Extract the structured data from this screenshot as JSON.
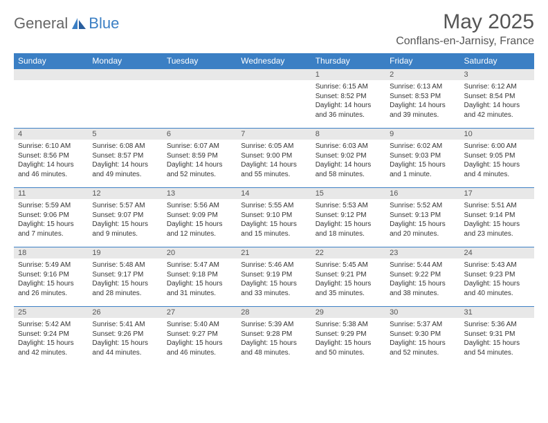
{
  "brand": {
    "part1": "General",
    "part2": "Blue"
  },
  "title": "May 2025",
  "location": "Conflans-en-Jarnisy, France",
  "colors": {
    "header_bg": "#3b7fc4",
    "header_text": "#ffffff",
    "daynum_bg": "#e8e8e8",
    "text": "#333333",
    "rule": "#3b7fc4"
  },
  "weekdays": [
    "Sunday",
    "Monday",
    "Tuesday",
    "Wednesday",
    "Thursday",
    "Friday",
    "Saturday"
  ],
  "weeks": [
    [
      null,
      null,
      null,
      null,
      {
        "n": "1",
        "sunrise": "6:15 AM",
        "sunset": "8:52 PM",
        "daylight": "14 hours and 36 minutes."
      },
      {
        "n": "2",
        "sunrise": "6:13 AM",
        "sunset": "8:53 PM",
        "daylight": "14 hours and 39 minutes."
      },
      {
        "n": "3",
        "sunrise": "6:12 AM",
        "sunset": "8:54 PM",
        "daylight": "14 hours and 42 minutes."
      }
    ],
    [
      {
        "n": "4",
        "sunrise": "6:10 AM",
        "sunset": "8:56 PM",
        "daylight": "14 hours and 46 minutes."
      },
      {
        "n": "5",
        "sunrise": "6:08 AM",
        "sunset": "8:57 PM",
        "daylight": "14 hours and 49 minutes."
      },
      {
        "n": "6",
        "sunrise": "6:07 AM",
        "sunset": "8:59 PM",
        "daylight": "14 hours and 52 minutes."
      },
      {
        "n": "7",
        "sunrise": "6:05 AM",
        "sunset": "9:00 PM",
        "daylight": "14 hours and 55 minutes."
      },
      {
        "n": "8",
        "sunrise": "6:03 AM",
        "sunset": "9:02 PM",
        "daylight": "14 hours and 58 minutes."
      },
      {
        "n": "9",
        "sunrise": "6:02 AM",
        "sunset": "9:03 PM",
        "daylight": "15 hours and 1 minute."
      },
      {
        "n": "10",
        "sunrise": "6:00 AM",
        "sunset": "9:05 PM",
        "daylight": "15 hours and 4 minutes."
      }
    ],
    [
      {
        "n": "11",
        "sunrise": "5:59 AM",
        "sunset": "9:06 PM",
        "daylight": "15 hours and 7 minutes."
      },
      {
        "n": "12",
        "sunrise": "5:57 AM",
        "sunset": "9:07 PM",
        "daylight": "15 hours and 9 minutes."
      },
      {
        "n": "13",
        "sunrise": "5:56 AM",
        "sunset": "9:09 PM",
        "daylight": "15 hours and 12 minutes."
      },
      {
        "n": "14",
        "sunrise": "5:55 AM",
        "sunset": "9:10 PM",
        "daylight": "15 hours and 15 minutes."
      },
      {
        "n": "15",
        "sunrise": "5:53 AM",
        "sunset": "9:12 PM",
        "daylight": "15 hours and 18 minutes."
      },
      {
        "n": "16",
        "sunrise": "5:52 AM",
        "sunset": "9:13 PM",
        "daylight": "15 hours and 20 minutes."
      },
      {
        "n": "17",
        "sunrise": "5:51 AM",
        "sunset": "9:14 PM",
        "daylight": "15 hours and 23 minutes."
      }
    ],
    [
      {
        "n": "18",
        "sunrise": "5:49 AM",
        "sunset": "9:16 PM",
        "daylight": "15 hours and 26 minutes."
      },
      {
        "n": "19",
        "sunrise": "5:48 AM",
        "sunset": "9:17 PM",
        "daylight": "15 hours and 28 minutes."
      },
      {
        "n": "20",
        "sunrise": "5:47 AM",
        "sunset": "9:18 PM",
        "daylight": "15 hours and 31 minutes."
      },
      {
        "n": "21",
        "sunrise": "5:46 AM",
        "sunset": "9:19 PM",
        "daylight": "15 hours and 33 minutes."
      },
      {
        "n": "22",
        "sunrise": "5:45 AM",
        "sunset": "9:21 PM",
        "daylight": "15 hours and 35 minutes."
      },
      {
        "n": "23",
        "sunrise": "5:44 AM",
        "sunset": "9:22 PM",
        "daylight": "15 hours and 38 minutes."
      },
      {
        "n": "24",
        "sunrise": "5:43 AM",
        "sunset": "9:23 PM",
        "daylight": "15 hours and 40 minutes."
      }
    ],
    [
      {
        "n": "25",
        "sunrise": "5:42 AM",
        "sunset": "9:24 PM",
        "daylight": "15 hours and 42 minutes."
      },
      {
        "n": "26",
        "sunrise": "5:41 AM",
        "sunset": "9:26 PM",
        "daylight": "15 hours and 44 minutes."
      },
      {
        "n": "27",
        "sunrise": "5:40 AM",
        "sunset": "9:27 PM",
        "daylight": "15 hours and 46 minutes."
      },
      {
        "n": "28",
        "sunrise": "5:39 AM",
        "sunset": "9:28 PM",
        "daylight": "15 hours and 48 minutes."
      },
      {
        "n": "29",
        "sunrise": "5:38 AM",
        "sunset": "9:29 PM",
        "daylight": "15 hours and 50 minutes."
      },
      {
        "n": "30",
        "sunrise": "5:37 AM",
        "sunset": "9:30 PM",
        "daylight": "15 hours and 52 minutes."
      },
      {
        "n": "31",
        "sunrise": "5:36 AM",
        "sunset": "9:31 PM",
        "daylight": "15 hours and 54 minutes."
      }
    ]
  ],
  "labels": {
    "sunrise": "Sunrise:",
    "sunset": "Sunset:",
    "daylight": "Daylight:"
  }
}
